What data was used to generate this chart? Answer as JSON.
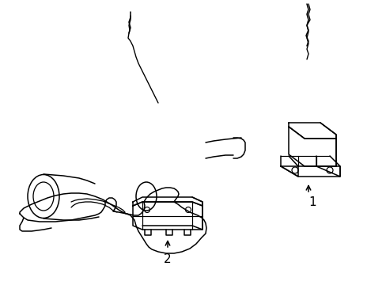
{
  "background_color": "#ffffff",
  "line_color": "#000000",
  "line_width": 1.1,
  "figure_width": 4.89,
  "figure_height": 3.6,
  "dpi": 100,
  "label1": "1",
  "label2": "2"
}
